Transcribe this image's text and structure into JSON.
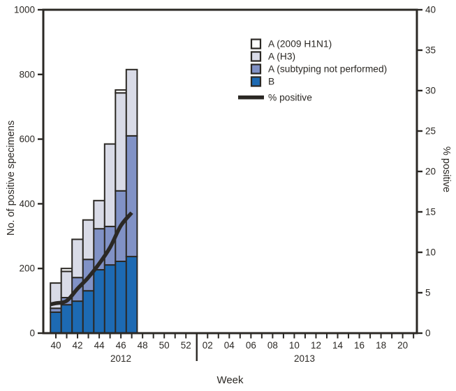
{
  "figure": {
    "background": "#ffffff",
    "ink_color": "#2b2824"
  },
  "chart_data": {
    "type": "bar",
    "subtype": "stacked-bars-with-line-overlay",
    "title": "",
    "xlabel": "Week",
    "ylabel_left": "No. of positive specimens",
    "ylabel_right": "% positive",
    "grid": "off",
    "legend_position": "top-center-inside",
    "y_left": {
      "min": 0,
      "max": 1000,
      "ticks": [
        "0",
        "200",
        "400",
        "600",
        "800",
        "1000"
      ]
    },
    "y_right": {
      "min": 0,
      "max": 40,
      "ticks": [
        "0",
        "5",
        "10",
        "15",
        "20",
        "25",
        "30",
        "35",
        "40"
      ]
    },
    "x_axis": {
      "year_groups": [
        {
          "year": "2012",
          "weeks": [
            "40",
            "41",
            "42",
            "43",
            "44",
            "45",
            "46",
            "47",
            "48",
            "49",
            "50",
            "51",
            "52"
          ],
          "labeled": [
            "40",
            "42",
            "44",
            "46",
            "48",
            "50",
            "52"
          ]
        },
        {
          "year": "2013",
          "weeks": [
            "01",
            "02",
            "03",
            "04",
            "05",
            "06",
            "07",
            "08",
            "09",
            "10",
            "11",
            "12",
            "13",
            "14",
            "15",
            "16",
            "17",
            "18",
            "19",
            "20",
            "21"
          ],
          "labeled": [
            "02",
            "04",
            "06",
            "08",
            "10",
            "12",
            "14",
            "16",
            "18",
            "20"
          ]
        }
      ]
    },
    "bar_weeks": [
      "40",
      "41",
      "42",
      "43",
      "44",
      "45",
      "46",
      "47"
    ],
    "series": [
      {
        "name": "A (2009 H1N1)",
        "color": "#ffffff",
        "values": [
          0,
          9,
          0,
          0,
          0,
          0,
          9,
          0
        ]
      },
      {
        "name": "A (H3)",
        "color": "#d9dbe7",
        "values": [
          78,
          81,
          118,
          122,
          87,
          255,
          303,
          205
        ]
      },
      {
        "name": "A (subtyping not performed)",
        "color": "#8192c6",
        "values": [
          12,
          22,
          73,
          97,
          127,
          119,
          218,
          373
        ]
      },
      {
        "name": "B",
        "color": "#1d6ab3",
        "values": [
          65,
          88,
          99,
          131,
          196,
          211,
          222,
          237
        ]
      }
    ],
    "totals": [
      155,
      200,
      290,
      350,
      410,
      585,
      752,
      815
    ],
    "line_series": {
      "name": "% positive",
      "color": "#2b2824",
      "values": [
        3.7,
        4.0,
        5.5,
        6.9,
        8.6,
        10.6,
        13.3,
        14.9
      ]
    },
    "legend_entries": [
      "A (2009 H1N1)",
      "A (H3)",
      "A (subtyping not performed)",
      "B",
      "% positive"
    ]
  }
}
